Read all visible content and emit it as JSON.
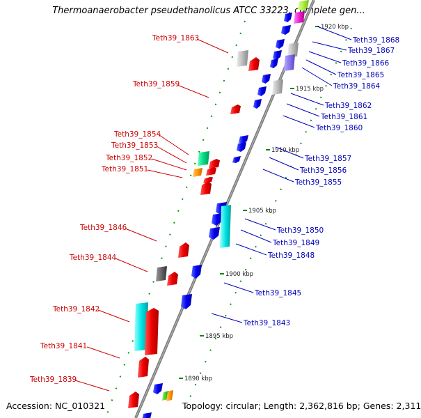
{
  "title": "Thermoanaerobacter pseudethanolicus ATCC 33223, complete gen...",
  "footer": {
    "accession": "Accession: NC_010321",
    "topology": "Topology: circular; Length: 2,362,816 bp; Genes: 2,311"
  },
  "colors": {
    "left_label": "#cc0000",
    "right_label": "#0000bb",
    "backbone": "#888888",
    "tick": "#008800"
  },
  "ticks": [
    "1920 kbp",
    "1915 kbp",
    "1910 kbp",
    "1905 kbp",
    "1900 kbp",
    "1895 kbp",
    "1890 kbp"
  ],
  "left_genes": [
    "Teth39_1863",
    "Teth39_1859",
    "Teth39_1854",
    "Teth39_1853",
    "Teth39_1852",
    "Teth39_1851",
    "Teth39_1846",
    "Teth39_1844",
    "Teth39_1842",
    "Teth39_1841",
    "Teth39_1839"
  ],
  "right_genes": [
    "Teth39_1868",
    "Teth39_1867",
    "Teth39_1866",
    "Teth39_1865",
    "Teth39_1864",
    "Teth39_1862",
    "Teth39_1861",
    "Teth39_1860",
    "Teth39_1857",
    "Teth39_1856",
    "Teth39_1855",
    "Teth39_1850",
    "Teth39_1849",
    "Teth39_1848",
    "Teth39_1845",
    "Teth39_1843"
  ]
}
